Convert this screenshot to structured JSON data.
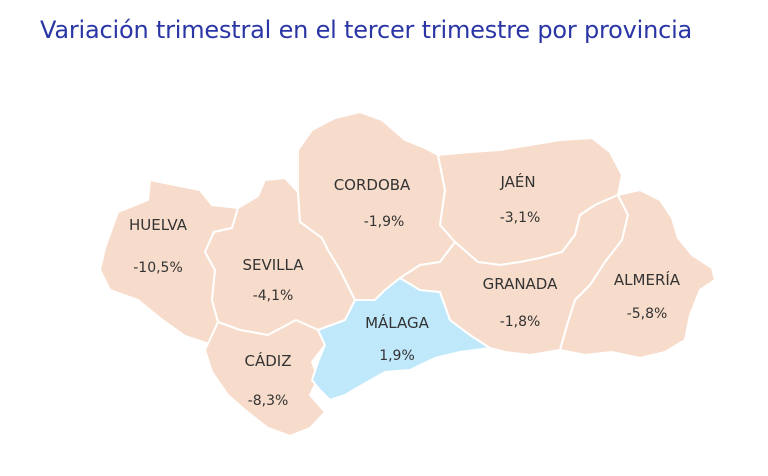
{
  "title": "Variación trimestral en el tercer trimestre por provincia",
  "colors": {
    "negative": "#f7dccb",
    "positive": "#bfe8fb",
    "title": "#2b36a6"
  },
  "provinces": [
    {
      "id": "huelva",
      "name": "HUELVA",
      "value": "-10,5%"
    },
    {
      "id": "sevilla",
      "name": "SEVILLA",
      "value": "-4,1%"
    },
    {
      "id": "cadiz",
      "name": "CÁDIZ",
      "value": "-8,3%"
    },
    {
      "id": "cordoba",
      "name": "CORDOBA",
      "value": "-1,9%"
    },
    {
      "id": "malaga",
      "name": "MÁLAGA",
      "value": "1,9%"
    },
    {
      "id": "jaen",
      "name": "JAÉN",
      "value": "-3,1%"
    },
    {
      "id": "granada",
      "name": "GRANADA",
      "value": "-1,8%"
    },
    {
      "id": "almeria",
      "name": "ALMERÍA",
      "value": "-5,8%"
    }
  ]
}
